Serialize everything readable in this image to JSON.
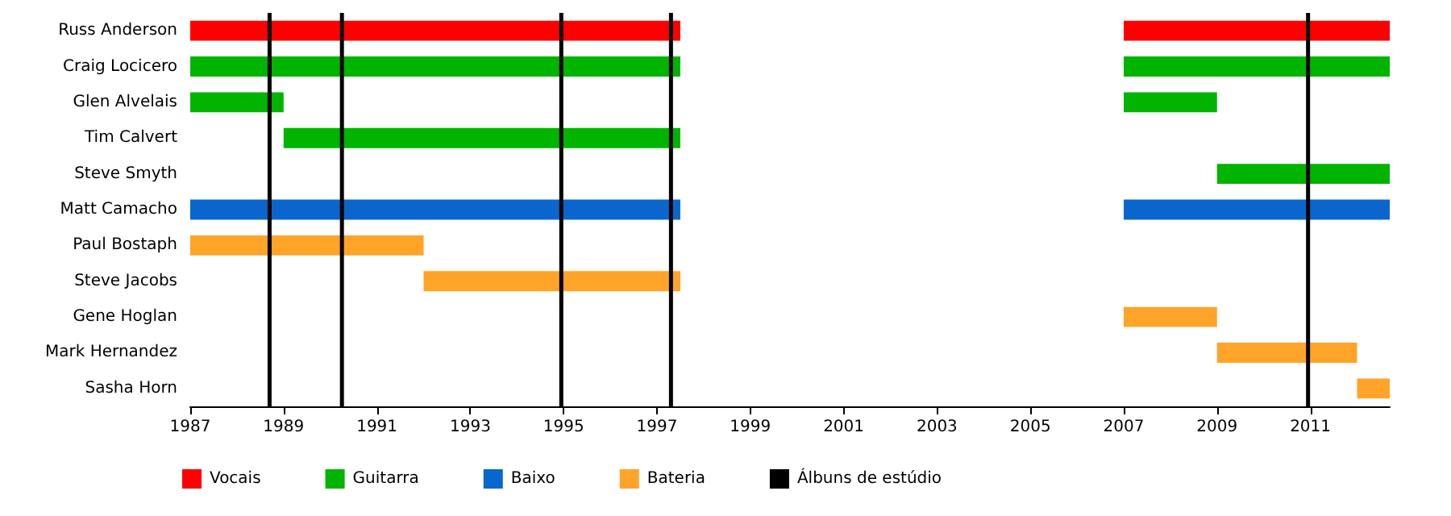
{
  "chart_data": {
    "type": "bar",
    "orientation": "horizontal",
    "categories": [
      "Russ Anderson",
      "Craig Locicero",
      "Glen Alvelais",
      "Tim Calvert",
      "Steve Smyth",
      "Matt Camacho",
      "Paul Bostaph",
      "Steve Jacobs",
      "Gene Hoglan",
      "Mark Hernandez",
      "Sasha Horn"
    ],
    "series": [
      {
        "name": "Vocais",
        "color": "#ff0000",
        "base": [
          1987,
          null,
          null,
          null,
          null,
          null,
          null,
          null,
          null,
          null,
          null
        ],
        "values": [
          10.5,
          null,
          null,
          null,
          null,
          null,
          null,
          null,
          null,
          null,
          null
        ]
      },
      {
        "color": "#ff0000",
        "base": [
          2007,
          null,
          null,
          null,
          null,
          null,
          null,
          null,
          null,
          null,
          null
        ],
        "values": [
          5.7,
          null,
          null,
          null,
          null,
          null,
          null,
          null,
          null,
          null,
          null
        ]
      },
      {
        "name": "Guitarra",
        "color": "#00b400",
        "base": [
          null,
          1987,
          1987,
          1989,
          null,
          null,
          null,
          null,
          null,
          null,
          null
        ],
        "values": [
          null,
          10.5,
          2,
          8.5,
          null,
          null,
          null,
          null,
          null,
          null,
          null
        ]
      },
      {
        "color": "#00b400",
        "base": [
          null,
          2007,
          2007,
          null,
          2009,
          null,
          null,
          null,
          null,
          null,
          null
        ],
        "values": [
          null,
          5.7,
          2,
          null,
          3.7,
          null,
          null,
          null,
          null,
          null,
          null
        ]
      },
      {
        "name": "Baixo",
        "color": "#0a66cc",
        "base": [
          null,
          null,
          null,
          null,
          null,
          1987,
          null,
          null,
          null,
          null,
          null
        ],
        "values": [
          null,
          null,
          null,
          null,
          null,
          10.5,
          null,
          null,
          null,
          null,
          null
        ]
      },
      {
        "color": "#0a66cc",
        "base": [
          null,
          null,
          null,
          null,
          null,
          2007,
          null,
          null,
          null,
          null,
          null
        ],
        "values": [
          null,
          null,
          null,
          null,
          null,
          5.7,
          null,
          null,
          null,
          null,
          null
        ]
      },
      {
        "name": "Bateria",
        "color": "#ffa428",
        "base": [
          null,
          null,
          null,
          null,
          null,
          null,
          1987,
          1992,
          2007,
          2009,
          2012
        ],
        "values": [
          null,
          null,
          null,
          null,
          null,
          null,
          5,
          5.5,
          2,
          3,
          0.7
        ]
      }
    ],
    "ref_lines": [
      {
        "axis": "x",
        "value": 1988.7,
        "label": "Álbuns de estúdio",
        "color": "#000000"
      },
      {
        "axis": "x",
        "value": 1990.25,
        "color": "#000000"
      },
      {
        "axis": "x",
        "value": 1994.95,
        "color": "#000000"
      },
      {
        "axis": "x",
        "value": 1997.3,
        "color": "#000000"
      },
      {
        "axis": "x",
        "value": 2010.95,
        "color": "#000000"
      }
    ],
    "xlim": [
      1987,
      2012.7
    ],
    "xticks": [
      1987,
      1989,
      1991,
      1993,
      1995,
      1997,
      1999,
      2001,
      2003,
      2005,
      2007,
      2009,
      2011
    ],
    "grid": false,
    "legend": "bottom left"
  }
}
